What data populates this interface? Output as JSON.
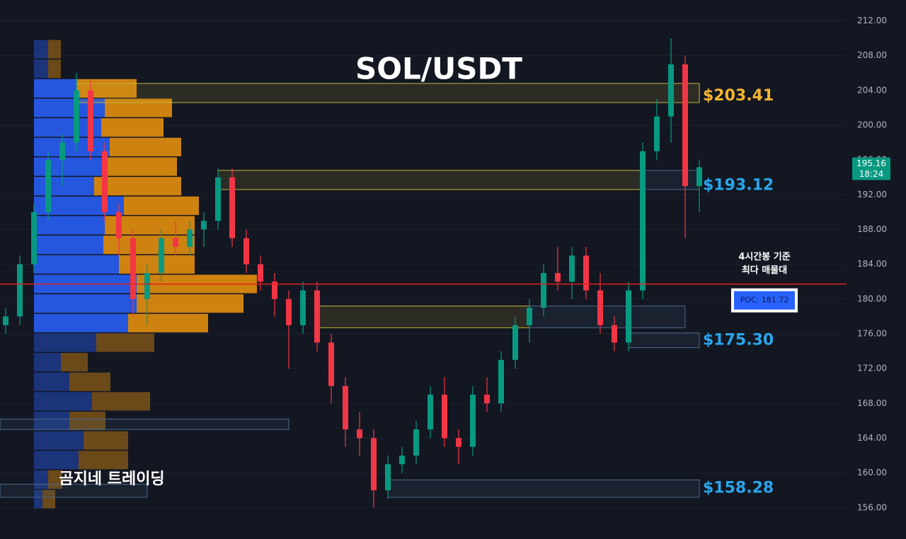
{
  "chart_data": {
    "type": "candlestick",
    "title": "SOL/USDT",
    "watermark": "곰지네 트레이딩",
    "ylim": [
      152.4,
      214.4
    ],
    "yticks": [
      {
        "value": 156,
        "label": "156.00"
      },
      {
        "value": 160,
        "label": "160.00"
      },
      {
        "value": 164,
        "label": "164.00"
      },
      {
        "value": 168,
        "label": "168.00"
      },
      {
        "value": 172,
        "label": "172.00"
      },
      {
        "value": 176,
        "label": "176.00"
      },
      {
        "value": 180,
        "label": "180.00"
      },
      {
        "value": 184,
        "label": "184.00"
      },
      {
        "value": 188,
        "label": "188.00"
      },
      {
        "value": 192,
        "label": "192.00"
      },
      {
        "value": 196,
        "label": "196.00"
      },
      {
        "value": 200,
        "label": "200.00"
      },
      {
        "value": 204,
        "label": "204.00"
      },
      {
        "value": 208,
        "label": "208.00"
      },
      {
        "value": 212,
        "label": "212.00"
      }
    ],
    "grid": true,
    "up_color": "#089981",
    "down_color": "#f23645",
    "ohlc": [
      [
        177,
        179,
        176,
        178
      ],
      [
        178,
        185,
        177,
        184
      ],
      [
        184,
        191,
        183,
        190
      ],
      [
        190,
        197,
        189,
        196
      ],
      [
        196,
        199,
        193,
        198
      ],
      [
        198,
        206,
        197,
        204
      ],
      [
        204,
        205,
        196,
        197
      ],
      [
        197,
        198,
        189,
        190
      ],
      [
        190,
        191,
        185,
        187
      ],
      [
        187,
        188,
        178,
        180
      ],
      [
        180,
        184,
        177,
        183
      ],
      [
        183,
        188,
        182,
        187
      ],
      [
        187,
        189,
        185,
        186
      ],
      [
        186,
        189,
        185,
        188
      ],
      [
        188,
        190,
        186,
        189
      ],
      [
        189,
        195,
        188,
        194
      ],
      [
        194,
        195,
        186,
        187
      ],
      [
        187,
        188,
        183,
        184
      ],
      [
        184,
        185,
        181,
        182
      ],
      [
        182,
        183,
        178,
        180
      ],
      [
        180,
        181,
        172,
        177
      ],
      [
        177,
        182,
        176,
        181
      ],
      [
        181,
        182,
        174,
        175
      ],
      [
        175,
        176,
        168,
        170
      ],
      [
        170,
        171,
        163,
        165
      ],
      [
        165,
        167,
        162,
        164
      ],
      [
        164,
        165,
        156,
        158
      ],
      [
        158,
        162,
        157,
        161
      ],
      [
        161,
        163,
        160,
        162
      ],
      [
        162,
        166,
        161,
        165
      ],
      [
        165,
        170,
        164,
        169
      ],
      [
        169,
        171,
        163,
        164
      ],
      [
        164,
        165,
        161,
        163
      ],
      [
        163,
        170,
        162,
        169
      ],
      [
        169,
        171,
        167,
        168
      ],
      [
        168,
        174,
        167,
        173
      ],
      [
        173,
        178,
        172,
        177
      ],
      [
        177,
        180,
        175,
        179
      ],
      [
        179,
        184,
        178,
        183
      ],
      [
        183,
        186,
        181,
        182
      ],
      [
        182,
        186,
        180,
        185
      ],
      [
        185,
        186,
        180,
        181
      ],
      [
        181,
        183,
        176,
        177
      ],
      [
        177,
        178,
        174,
        175
      ],
      [
        175,
        182,
        174,
        181
      ],
      [
        181,
        198,
        180,
        197
      ],
      [
        197,
        203,
        196,
        201
      ],
      [
        201,
        210,
        198,
        207
      ],
      [
        207,
        208,
        187,
        193
      ],
      [
        193,
        196,
        190,
        195.16
      ]
    ],
    "last_price": {
      "value": 195.16,
      "timer": "18:24",
      "color": "#089981"
    },
    "levels": [
      {
        "value": 203.41,
        "label": "$203.41",
        "color": "#f5b52e"
      },
      {
        "value": 193.12,
        "label": "$193.12",
        "color": "#2aa6ec"
      },
      {
        "value": 175.3,
        "label": "$175.30",
        "color": "#2aa6ec"
      },
      {
        "value": 158.28,
        "label": "$158.28",
        "color": "#2aa6ec"
      }
    ],
    "poc": {
      "value": 181.72,
      "label": "POC: 181.72",
      "color": "#e0201c",
      "note": [
        "4시간봉 기준",
        "최다 매물대"
      ]
    },
    "zones": [
      {
        "low": 202.6,
        "high": 204.8,
        "start": 5,
        "end": 49,
        "color": "#c8b43c"
      },
      {
        "low": 192.6,
        "high": 194.8,
        "start": 15,
        "end": 45,
        "color": "#c8b43c"
      },
      {
        "low": 192.6,
        "high": 194.8,
        "start": 45,
        "end": 49,
        "color": "#4a6a8a"
      },
      {
        "low": 176.7,
        "high": 179.2,
        "start": 22,
        "end": 37,
        "color": "#c8b43c"
      },
      {
        "low": 176.7,
        "high": 179.2,
        "start": 37,
        "end": 48,
        "color": "#4a6a8a"
      },
      {
        "low": 174.4,
        "high": 176.1,
        "start": 44,
        "end": 49,
        "color": "#4a6a8a"
      },
      {
        "low": 157.2,
        "high": 159.2,
        "start": 27,
        "end": 49,
        "color": "#4a6a8a"
      },
      {
        "low": 165.0,
        "high": 166.2,
        "start": 0,
        "end": 20,
        "color": "#4a6a8a"
      },
      {
        "low": 157.2,
        "high": 158.7,
        "start": 0,
        "end": 10,
        "color": "#4a6a8a"
      }
    ],
    "volume_profile": {
      "bins": [
        155.8,
        158.05,
        160.3,
        162.55,
        164.8,
        167.05,
        169.3,
        171.55,
        173.8,
        176.05,
        178.3,
        180.55,
        182.8,
        185.05,
        187.3,
        189.55,
        191.8,
        194.05,
        196.3,
        198.55,
        200.8,
        203.05,
        205.3,
        207.55,
        209.8
      ],
      "buy": [
        12,
        20,
        63,
        70,
        50,
        82,
        50,
        38,
        88,
        133,
        145,
        145,
        120,
        98,
        100,
        127,
        85,
        100,
        107,
        95,
        100,
        60,
        20,
        20
      ],
      "sell": [
        18,
        20,
        70,
        63,
        51,
        82,
        58,
        38,
        82,
        113,
        151,
        170,
        107,
        129,
        127,
        106,
        123,
        102,
        101,
        88,
        95,
        85,
        18,
        18
      ],
      "value_area": [
        176.05,
        205.3
      ],
      "buy_color": "#2962ff",
      "sell_color": "#f0950c"
    }
  }
}
